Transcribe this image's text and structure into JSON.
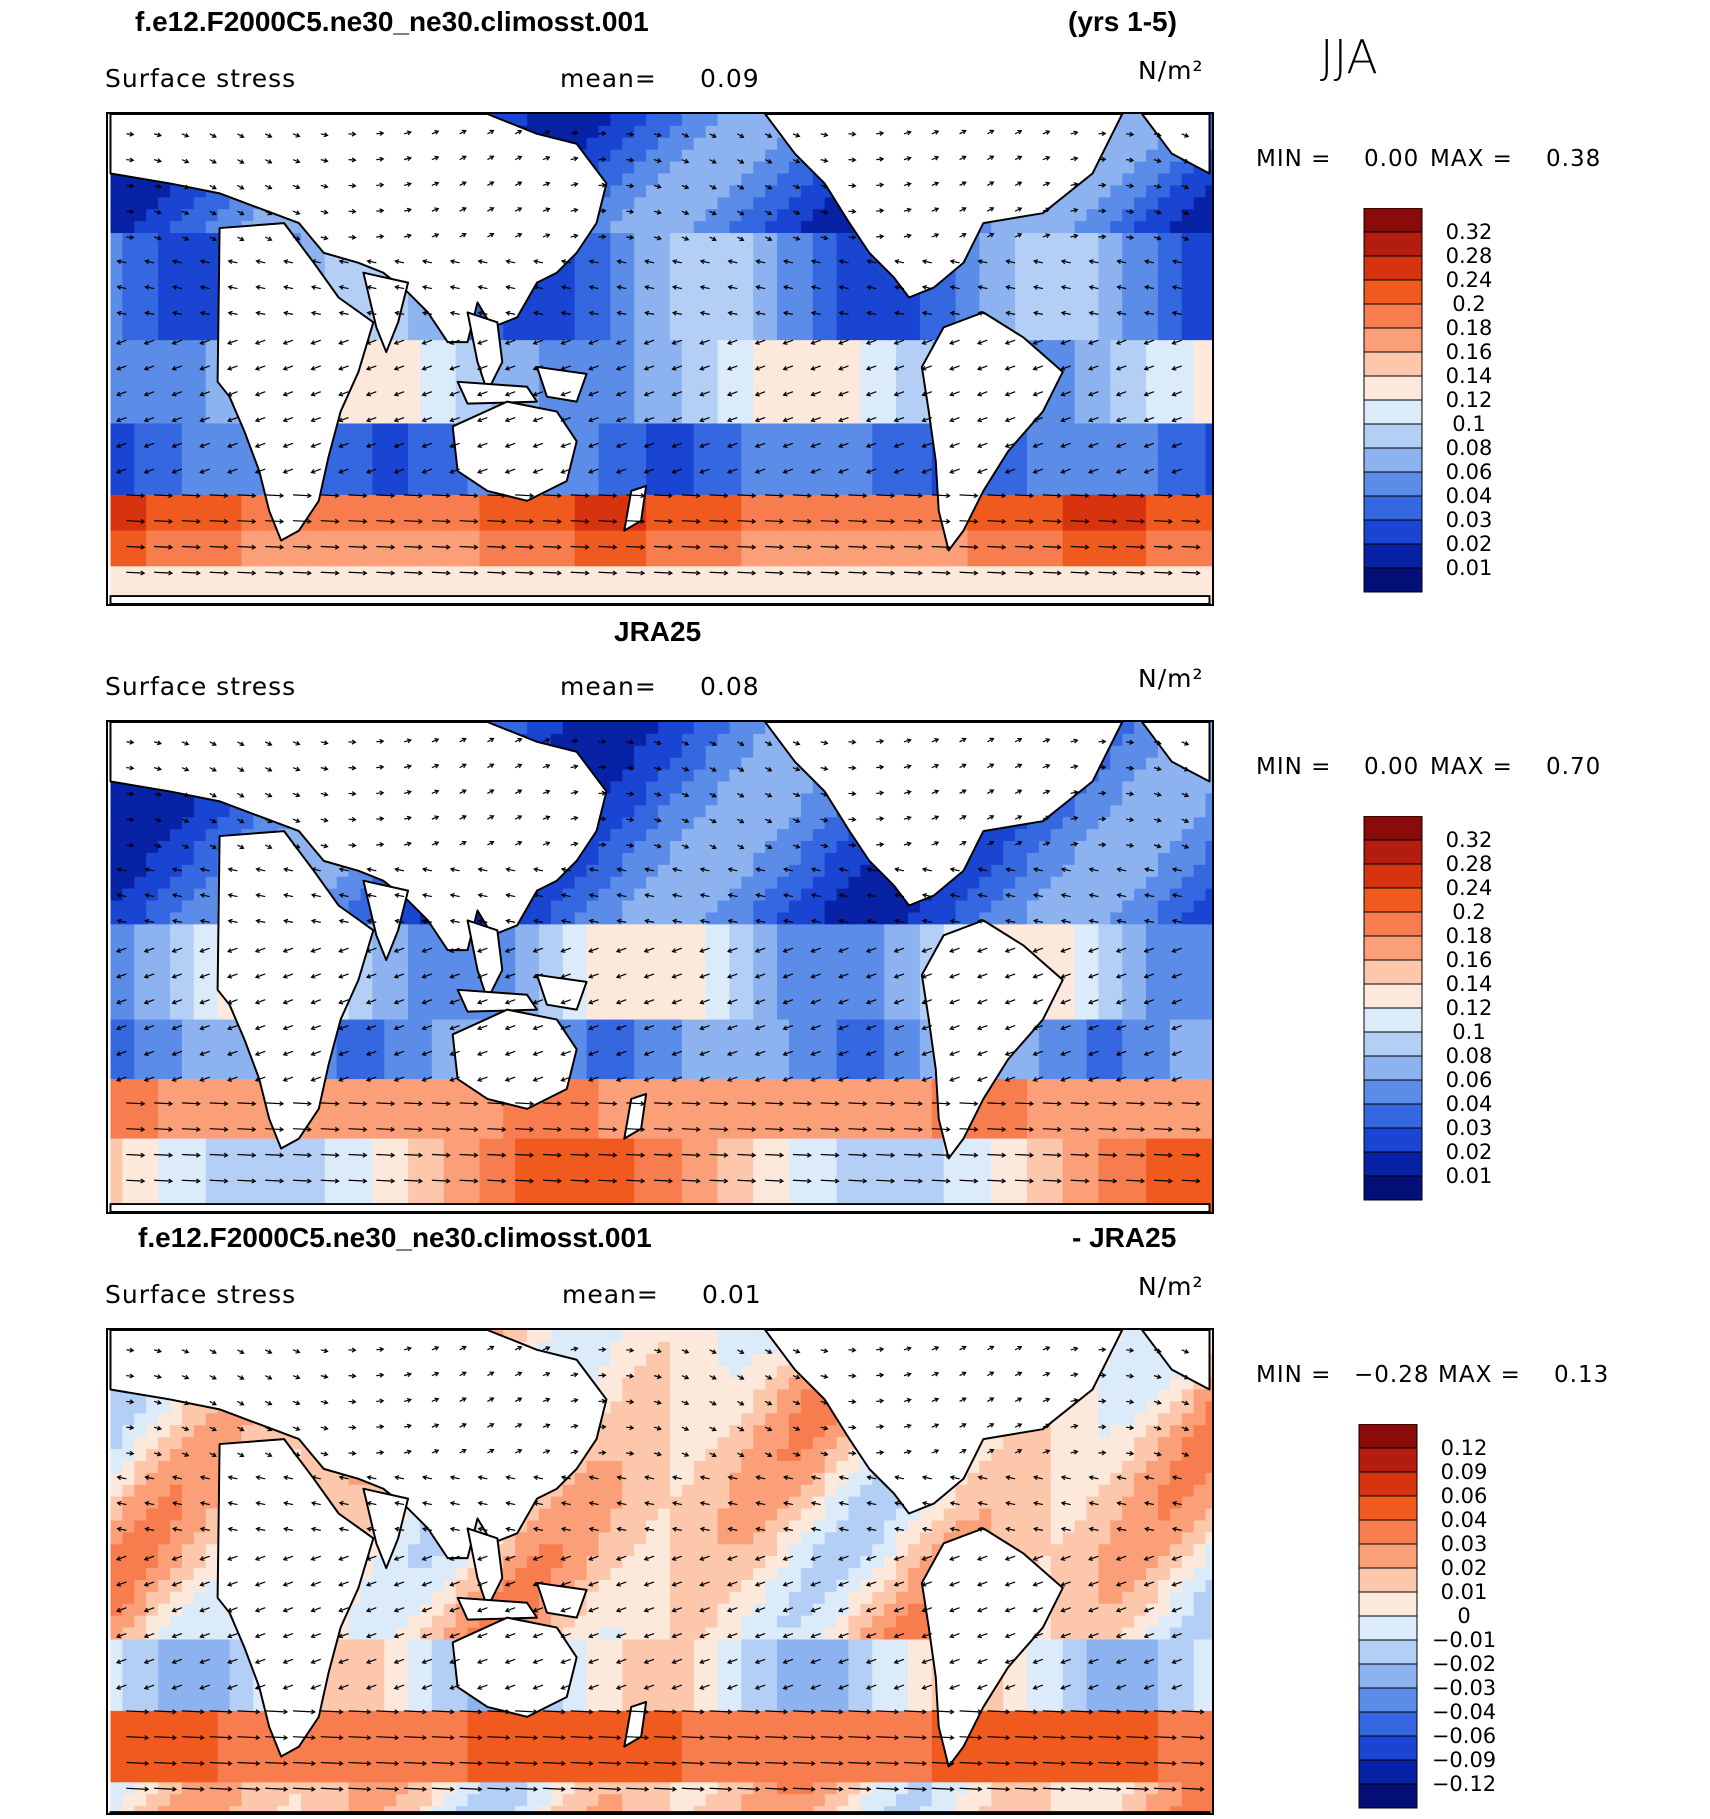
{
  "season": "JJA",
  "panels": [
    {
      "title_left": "f.e12.F2000C5.ne30_ne30.climosst.001",
      "title_right": "(yrs 1-5)",
      "variable": "Surface stress",
      "mean_label": "mean=",
      "mean_value": "0.09",
      "units": "N/m²",
      "min_label": "MIN =",
      "min_value": "0.00",
      "max_label": "MAX =",
      "max_value": "0.38",
      "levels": [
        "0.32",
        "0.28",
        "0.24",
        "0.2",
        "0.18",
        "0.16",
        "0.14",
        "0.12",
        "0.1",
        "0.08",
        "0.06",
        "0.04",
        "0.03",
        "0.02",
        "0.01"
      ],
      "colors": [
        "#8b0a0a",
        "#b41c10",
        "#d8330f",
        "#f05a1e",
        "#f77d4e",
        "#fb9f79",
        "#fdc7ab",
        "#fde9dc",
        "#dcebfa",
        "#b4cff5",
        "#8cb2ef",
        "#5a8ce8",
        "#3568e0",
        "#1945d2",
        "#0822a6",
        "#041078"
      ],
      "pattern": "model"
    },
    {
      "title_center": "JRA25",
      "variable": "Surface stress",
      "mean_label": "mean=",
      "mean_value": "0.08",
      "units": "N/m²",
      "min_label": "MIN =",
      "min_value": "0.00",
      "max_label": "MAX =",
      "max_value": "0.70",
      "levels": [
        "0.32",
        "0.28",
        "0.24",
        "0.2",
        "0.18",
        "0.16",
        "0.14",
        "0.12",
        "0.1",
        "0.08",
        "0.06",
        "0.04",
        "0.03",
        "0.02",
        "0.01"
      ],
      "colors": [
        "#8b0a0a",
        "#b41c10",
        "#d8330f",
        "#f05a1e",
        "#f77d4e",
        "#fb9f79",
        "#fdc7ab",
        "#fde9dc",
        "#dcebfa",
        "#b4cff5",
        "#8cb2ef",
        "#5a8ce8",
        "#3568e0",
        "#1945d2",
        "#0822a6",
        "#041078"
      ],
      "pattern": "obs"
    },
    {
      "title_left": "f.e12.F2000C5.ne30_ne30.climosst.001",
      "title_right": "- JRA25",
      "variable": "Surface stress",
      "mean_label": "mean=",
      "mean_value": "0.01",
      "units": "N/m²",
      "min_label": "MIN =",
      "min_value": "−0.28",
      "max_label": "MAX =",
      "max_value": "0.13",
      "levels": [
        "0.12",
        "0.09",
        "0.06",
        "0.04",
        "0.03",
        "0.02",
        "0.01",
        "0",
        "−0.01",
        "−0.02",
        "−0.03",
        "−0.04",
        "−0.06",
        "−0.09",
        "−0.12"
      ],
      "colors": [
        "#8b0a0a",
        "#b41c10",
        "#d8330f",
        "#f05a1e",
        "#f77d4e",
        "#fb9f79",
        "#fdc7ab",
        "#fde9dc",
        "#dcebfa",
        "#b4cff5",
        "#8cb2ef",
        "#5a8ce8",
        "#3568e0",
        "#1945d2",
        "#0822a6",
        "#041078"
      ],
      "pattern": "diff"
    }
  ]
}
